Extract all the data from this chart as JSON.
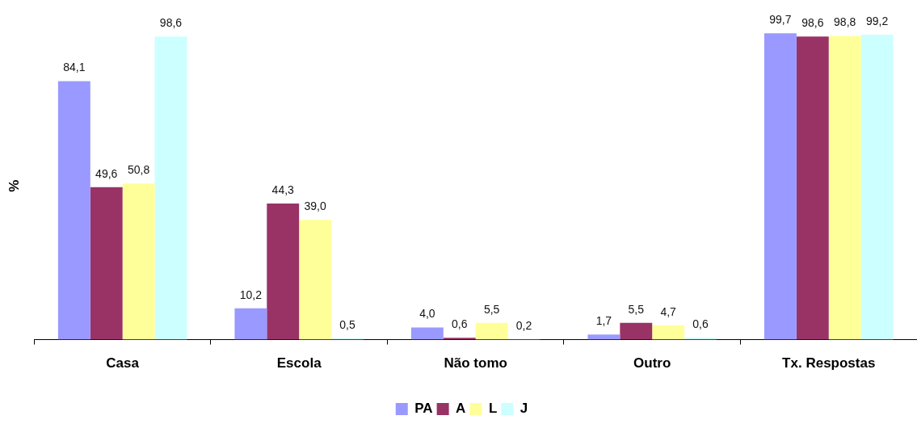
{
  "chart_data": {
    "type": "bar",
    "ylabel": "%",
    "categories": [
      "Casa",
      "Escola",
      "Não tomo",
      "Outro",
      "Tx. Respostas"
    ],
    "series": [
      {
        "name": "PA",
        "color": "#9999ff",
        "values": [
          84.1,
          10.2,
          4.0,
          1.7,
          99.7
        ],
        "value_labels": [
          "84,1",
          "10,2",
          "4,0",
          "1,7",
          "99,7"
        ]
      },
      {
        "name": "A",
        "color": "#993366",
        "values": [
          49.6,
          44.3,
          0.6,
          5.5,
          98.6
        ],
        "value_labels": [
          "49,6",
          "44,3",
          "0,6",
          "5,5",
          "98,6"
        ]
      },
      {
        "name": "L",
        "color": "#ffff99",
        "values": [
          50.8,
          39.0,
          5.5,
          4.7,
          98.8
        ],
        "value_labels": [
          "50,8",
          "39,0",
          "5,5",
          "4,7",
          "98,8"
        ]
      },
      {
        "name": "J",
        "color": "#ccffff",
        "values": [
          98.6,
          0.5,
          0.2,
          0.6,
          99.2
        ],
        "value_labels": [
          "98,6",
          "0,5",
          "0,2",
          "0,6",
          "99,2"
        ]
      }
    ],
    "legend": "bottom",
    "tick_labels": "x"
  }
}
